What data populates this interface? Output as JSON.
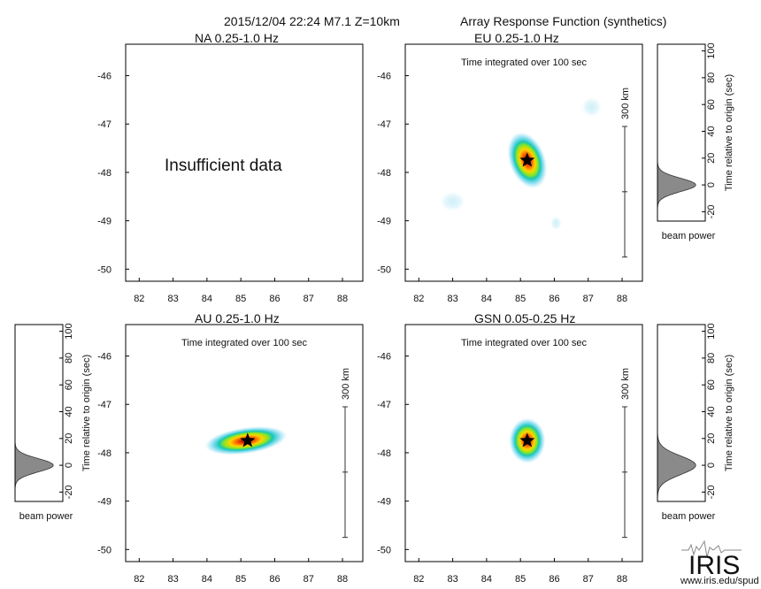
{
  "header": {
    "event": "2015/12/04 22:24  M7.1  Z=10km",
    "product": "Array Response Function (synthetics)"
  },
  "brand": {
    "logo_text": "IRIS",
    "url": "www.iris.edu/spud"
  },
  "colors": {
    "beam_fill": "#8a8a8a",
    "frame": "#000000",
    "star": "#000000"
  },
  "chart_data": [
    {
      "type": "heatmap",
      "title": "NA  0.25-1.0 Hz",
      "subtitle": "",
      "message": "Insufficient data",
      "x_ticks": [
        "82",
        "83",
        "84",
        "85",
        "86",
        "87",
        "88"
      ],
      "y_ticks": [
        "-46",
        "-47",
        "-48",
        "-49",
        "-50"
      ],
      "xlim": [
        81.6,
        88.6
      ],
      "ylim": [
        -50.25,
        -45.35
      ],
      "scale_bar": null,
      "epicenter": null,
      "blobs": [],
      "beam": null
    },
    {
      "type": "heatmap",
      "title": "EU  0.25-1.0 Hz",
      "subtitle": "Time integrated over 100 sec",
      "message": "",
      "x_ticks": [
        "82",
        "83",
        "84",
        "85",
        "86",
        "87",
        "88"
      ],
      "y_ticks": [
        "-46",
        "-47",
        "-48",
        "-49",
        "-50"
      ],
      "xlim": [
        81.6,
        88.6
      ],
      "ylim": [
        -50.25,
        -45.35
      ],
      "scale_bar": {
        "label": "300 km",
        "y_top": -47.05,
        "y_bottom": -49.75
      },
      "epicenter": [
        85.2,
        -47.75
      ],
      "blobs": [
        {
          "x": 85.2,
          "y": -47.75,
          "sx": 0.55,
          "sy": 0.62,
          "rot": -20,
          "peak": 1.0
        },
        {
          "x": 87.1,
          "y": -46.65,
          "sx": 0.32,
          "sy": 0.22,
          "rot": 0,
          "peak": 0.12
        },
        {
          "x": 83.0,
          "y": -48.6,
          "sx": 0.4,
          "sy": 0.22,
          "rot": 0,
          "peak": 0.1
        },
        {
          "x": 86.05,
          "y": -49.05,
          "sx": 0.18,
          "sy": 0.16,
          "rot": 0,
          "peak": 0.09
        }
      ],
      "beam": {
        "side": "right",
        "xlabel": "beam power",
        "ylabel": "Time relative to origin (sec)",
        "y_ticks": [
          "100",
          "80",
          "60",
          "40",
          "20",
          "0",
          "-20"
        ],
        "ylim": [
          -27,
          105
        ],
        "peak_time": 0,
        "width": 5
      }
    },
    {
      "type": "heatmap",
      "title": "AU  0.25-1.0 Hz",
      "subtitle": "Time integrated over 100 sec",
      "message": "",
      "x_ticks": [
        "82",
        "83",
        "84",
        "85",
        "86",
        "87",
        "88"
      ],
      "y_ticks": [
        "-46",
        "-47",
        "-48",
        "-49",
        "-50"
      ],
      "xlim": [
        81.6,
        88.6
      ],
      "ylim": [
        -50.25,
        -45.35
      ],
      "scale_bar": {
        "label": "300 km",
        "y_top": -47.05,
        "y_bottom": -49.75
      },
      "epicenter": [
        85.2,
        -47.75
      ],
      "blobs": [
        {
          "x": 85.15,
          "y": -47.75,
          "sx": 1.25,
          "sy": 0.28,
          "rot": -8,
          "peak": 1.0
        }
      ],
      "beam": {
        "side": "left",
        "xlabel": "beam power",
        "ylabel": "Time relative to origin (sec)",
        "y_ticks": [
          "100",
          "80",
          "60",
          "40",
          "20",
          "0",
          "-20"
        ],
        "ylim": [
          -27,
          105
        ],
        "peak_time": 0,
        "width": 5
      }
    },
    {
      "type": "heatmap",
      "title": "GSN  0.05-0.25 Hz",
      "subtitle": "Time integrated over 100 sec",
      "message": "",
      "x_ticks": [
        "82",
        "83",
        "84",
        "85",
        "86",
        "87",
        "88"
      ],
      "y_ticks": [
        "-46",
        "-47",
        "-48",
        "-49",
        "-50"
      ],
      "xlim": [
        81.6,
        88.6
      ],
      "ylim": [
        -50.25,
        -45.35
      ],
      "scale_bar": {
        "label": "300 km",
        "y_top": -47.05,
        "y_bottom": -49.75
      },
      "epicenter": [
        85.2,
        -47.75
      ],
      "blobs": [
        {
          "x": 85.2,
          "y": -47.75,
          "sx": 0.55,
          "sy": 0.48,
          "rot": 0,
          "peak": 1.0
        }
      ],
      "beam": {
        "side": "right",
        "xlabel": "beam power",
        "ylabel": "Time relative to origin (sec)",
        "y_ticks": [
          "100",
          "80",
          "60",
          "40",
          "20",
          "0",
          "-20"
        ],
        "ylim": [
          -27,
          105
        ],
        "peak_time": 0,
        "width": 7
      }
    }
  ]
}
